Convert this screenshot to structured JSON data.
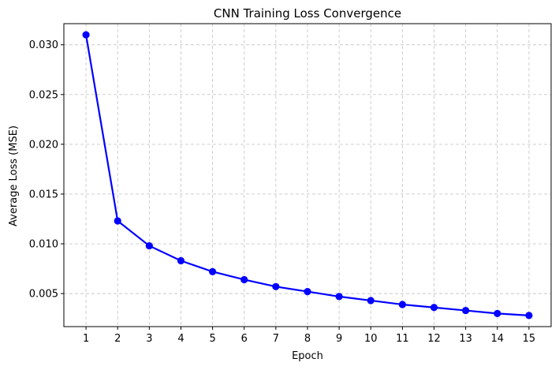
{
  "chart_data": {
    "type": "line",
    "title": "CNN Training Loss Convergence",
    "xlabel": "Epoch",
    "ylabel": "Average Loss (MSE)",
    "x": [
      1,
      2,
      3,
      4,
      5,
      6,
      7,
      8,
      9,
      10,
      11,
      12,
      13,
      14,
      15
    ],
    "series": [
      {
        "values": [
          0.031,
          0.0123,
          0.0098,
          0.0083,
          0.0072,
          0.0064,
          0.0057,
          0.0052,
          0.0047,
          0.0043,
          0.0039,
          0.0036,
          0.0033,
          0.003,
          0.0028
        ],
        "color": "#0000ff",
        "marker": "circle"
      }
    ],
    "xticks": [
      "1",
      "2",
      "3",
      "4",
      "5",
      "6",
      "7",
      "8",
      "9",
      "10",
      "11",
      "12",
      "13",
      "14",
      "15"
    ],
    "yticks": [
      "0.005",
      "0.010",
      "0.015",
      "0.020",
      "0.025",
      "0.030"
    ],
    "ytick_values": [
      0.005,
      0.01,
      0.015,
      0.02,
      0.025,
      0.03
    ],
    "xlim": [
      0.3,
      15.7
    ],
    "ylim": [
      0.00168,
      0.03212
    ],
    "grid": true,
    "grid_style": "dashed",
    "legend": "none"
  }
}
